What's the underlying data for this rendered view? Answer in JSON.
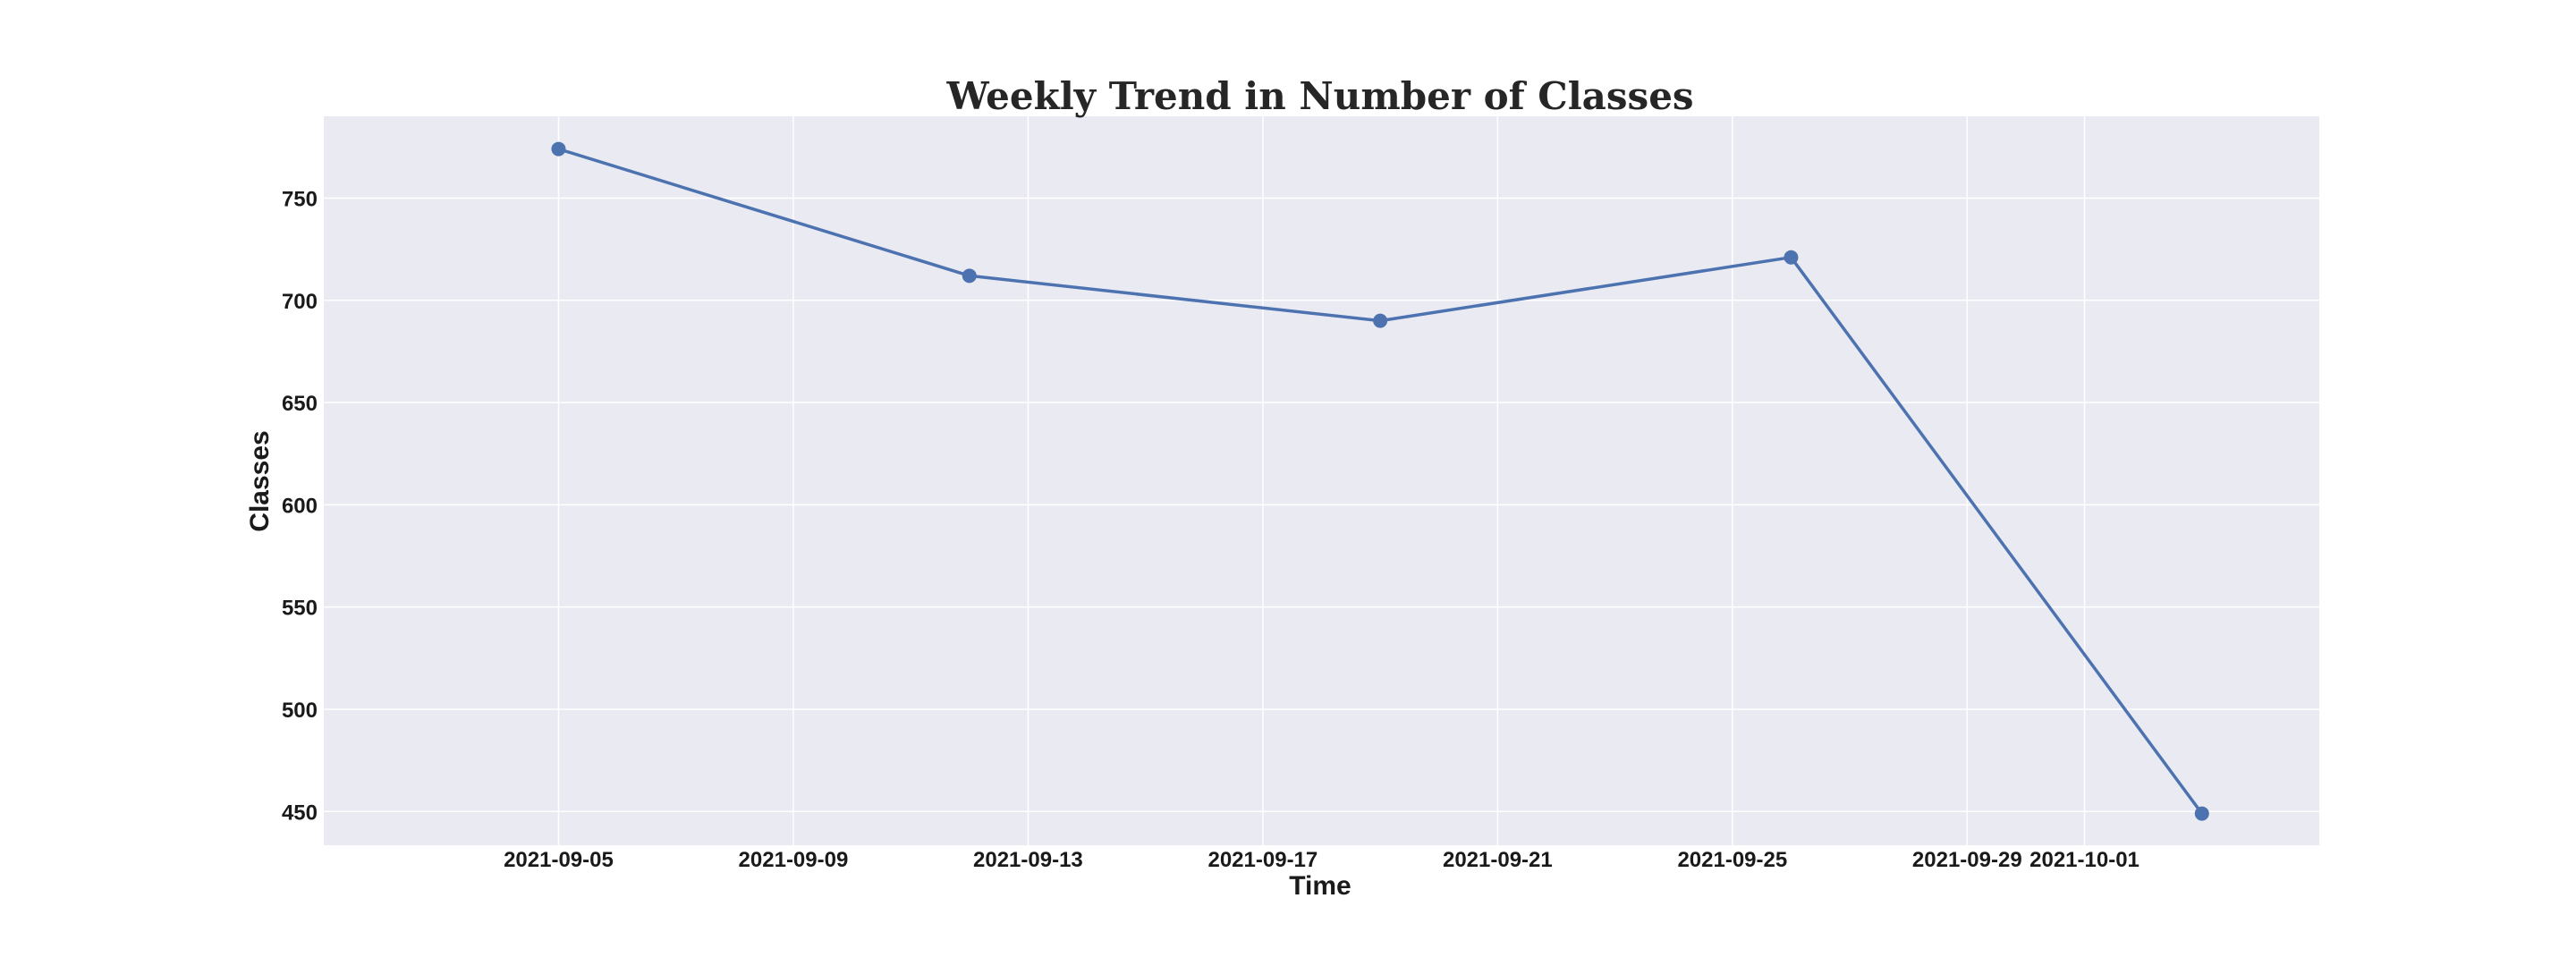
{
  "chart_data": {
    "type": "line",
    "title": "Weekly Trend in Number of Classes",
    "xlabel": "Time",
    "ylabel": "Classes",
    "x_type": "date",
    "xlim": [
      "2021-09-01",
      "2021-10-05"
    ],
    "ylim": [
      433.5,
      790
    ],
    "x_ticks": [
      "2021-09-05",
      "2021-09-09",
      "2021-09-13",
      "2021-09-17",
      "2021-09-21",
      "2021-09-25",
      "2021-09-29",
      "2021-10-01"
    ],
    "y_ticks": [
      450,
      500,
      550,
      600,
      650,
      700,
      750
    ],
    "grid": true,
    "legend": false,
    "background_color": "#eaeaf2",
    "grid_color": "#ffffff",
    "series": [
      {
        "color": "#4c72b0",
        "marker": "circle",
        "x": [
          "2021-09-05",
          "2021-09-12",
          "2021-09-19",
          "2021-09-26",
          "2021-10-03"
        ],
        "y": [
          774,
          712,
          690,
          721,
          449
        ]
      }
    ]
  }
}
